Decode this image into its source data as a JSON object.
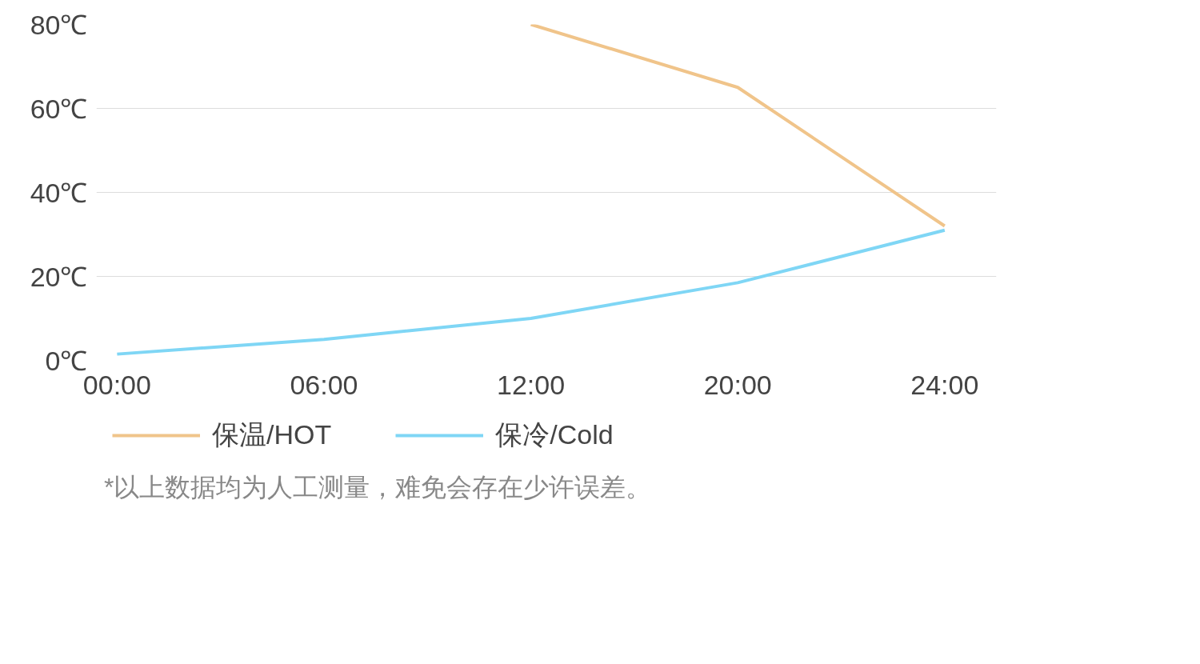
{
  "chart_data": {
    "type": "line",
    "categories": [
      "00:00",
      "06:00",
      "12:00",
      "20:00",
      "24:00"
    ],
    "series": [
      {
        "name": "保温/HOT",
        "color": "#f0c48a",
        "values": [
          null,
          null,
          80,
          65,
          32
        ]
      },
      {
        "name": "保冷/Cold",
        "color": "#7fd6f5",
        "values": [
          1.5,
          5,
          10,
          18.5,
          31
        ]
      }
    ],
    "ylim": [
      0,
      80
    ],
    "yticks": [
      {
        "value": 0,
        "label": "0℃"
      },
      {
        "value": 20,
        "label": "20℃"
      },
      {
        "value": 40,
        "label": "40℃"
      },
      {
        "value": 60,
        "label": "60℃"
      },
      {
        "value": 80,
        "label": "80℃"
      }
    ],
    "grid": "y",
    "legend": "bottom left",
    "marker": "none",
    "line_style": "solid",
    "annotations": [
      "*以上数据均为人工测量，难免会存在少许误差。"
    ]
  }
}
